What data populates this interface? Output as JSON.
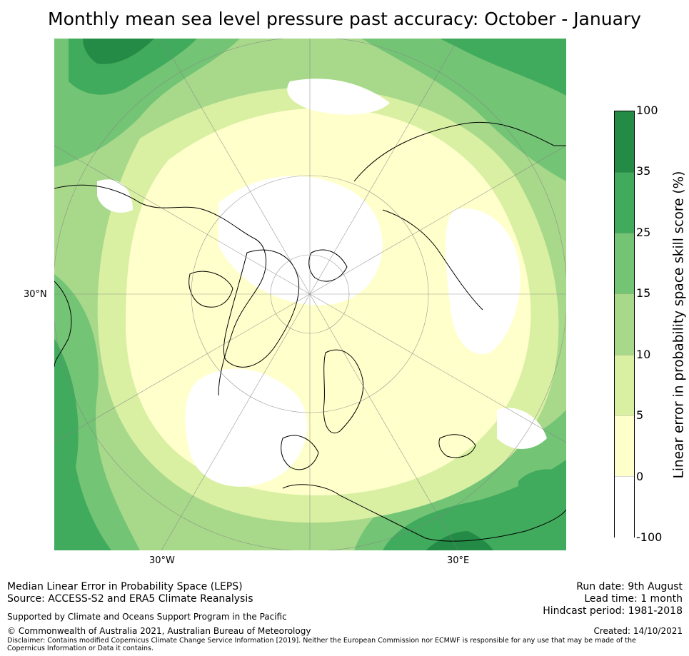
{
  "title": "Monthly mean sea level pressure past accuracy: October - January",
  "map": {
    "projection": "north-polar-stereographic",
    "lat_labels": [
      "30°N"
    ],
    "lon_labels": [
      "30°W",
      "30°E"
    ]
  },
  "colorbar": {
    "label": "Linear error in probability space skill score (%)",
    "ticks": [
      "100",
      "35",
      "25",
      "15",
      "10",
      "5",
      "0",
      "-100"
    ],
    "bins": [
      {
        "range": "35 to 100",
        "color": "#238b45"
      },
      {
        "range": "25 to 35",
        "color": "#41ab5d"
      },
      {
        "range": "15 to 25",
        "color": "#74c476"
      },
      {
        "range": "10 to 15",
        "color": "#a8d98b"
      },
      {
        "range": "5 to 10",
        "color": "#d9f0a3"
      },
      {
        "range": "0 to 5",
        "color": "#ffffcc"
      },
      {
        "range": "-100 to 0",
        "color": "#ffffff"
      }
    ]
  },
  "footer": {
    "metric": "Median Linear Error in Probability Space (LEPS)",
    "source": "Source: ACCESS-S2 and ERA5 Climate Reanalysis",
    "supported": "Supported by Climate and Oceans Support Program in the Pacific",
    "copyright": "© Commonwealth of Australia 2021, Australian Bureau of Meteorology",
    "disclaimer": "Disclaimer: Contains modified Copernicus Climate Change Service Information [2019]. Neither the European Commission nor ECMWF is responsible for any use that may be made of the Copernicus Information or Data it contains.",
    "run_date": "Run date: 9th August",
    "lead_time": "Lead time: 1 month",
    "hindcast": "Hindcast period: 1981-2018",
    "created": "Created: 14/10/2021"
  }
}
